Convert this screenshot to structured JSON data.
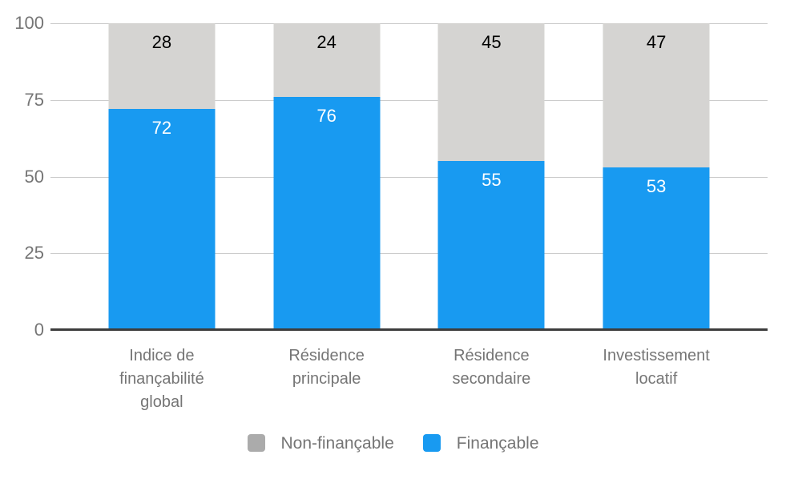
{
  "chart_data": {
    "type": "bar",
    "stacked": true,
    "orientation": "vertical",
    "title": "",
    "xlabel": "",
    "ylabel": "",
    "categories": [
      "Indice de finançabilité global",
      "Résidence principale",
      "Résidence secondaire",
      "Investissement locatif"
    ],
    "category_lines": [
      [
        "Indice de",
        "finançabilité",
        "global"
      ],
      [
        "Résidence",
        "principale"
      ],
      [
        "Résidence",
        "secondaire"
      ],
      [
        "Investissement",
        "locatif"
      ]
    ],
    "series": [
      {
        "name": "Finançable",
        "color": "#189af1",
        "label_color": "#ffffff",
        "values": [
          72,
          76,
          55,
          53
        ]
      },
      {
        "name": "Non-finançable",
        "color": "#d5d4d2",
        "label_color": "#000000",
        "values": [
          28,
          24,
          45,
          47
        ]
      }
    ],
    "y_ticks": [
      0,
      25,
      50,
      75,
      100
    ],
    "ylim": [
      0,
      100
    ],
    "grid": true,
    "gridline_color": "#cccccc",
    "axis_line_color": "#3d3d3d",
    "tick_label_color": "#757575",
    "legend_position": "bottom"
  },
  "legend": {
    "items": [
      {
        "label": "Non-finançable",
        "swatch_color": "#ababab"
      },
      {
        "label": "Finançable",
        "swatch_color": "#189af1"
      }
    ]
  }
}
